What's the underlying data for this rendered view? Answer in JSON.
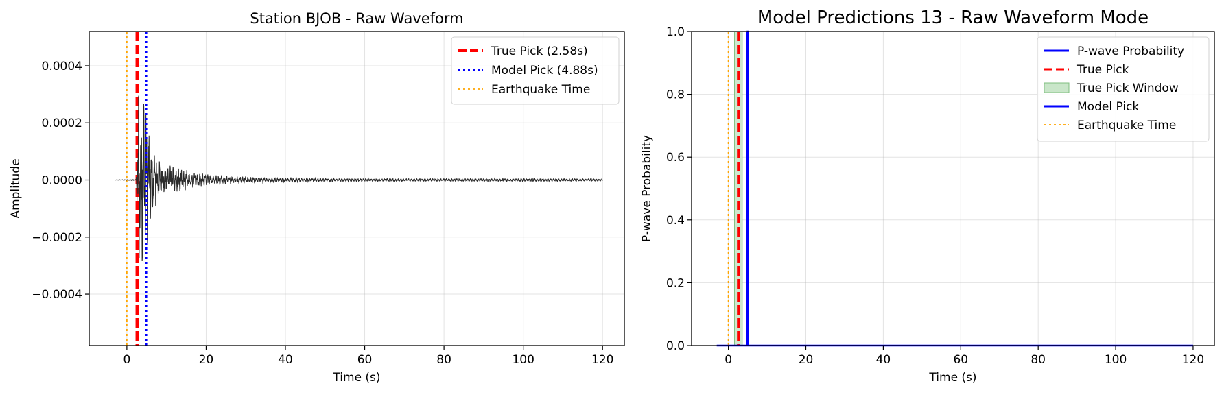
{
  "colors": {
    "waveform": "#2b2b2b",
    "true_pick": "#ff0000",
    "model_pick": "#0000ff",
    "earthquake_time": "#ffa500",
    "probability": "#0000ff",
    "pick_window_fill": "#c9e6c9",
    "pick_window_edge": "#7fbf7f"
  },
  "chart_data": [
    {
      "type": "line",
      "title": "Station BJOB - Raw Waveform",
      "xlabel": "Time (s)",
      "ylabel": "Amplitude",
      "xlim": [
        -9.5,
        125.5
      ],
      "ylim": [
        -0.00058,
        0.00052
      ],
      "xticks": [
        0,
        20,
        40,
        60,
        80,
        100,
        120
      ],
      "xtick_labels": [
        "0",
        "20",
        "40",
        "60",
        "80",
        "100",
        "120"
      ],
      "yticks": [
        0.0004,
        0.0002,
        0.0,
        -0.0002,
        -0.0004
      ],
      "ytick_labels": [
        "0.0004",
        "0.0002",
        "0.0000",
        "−0.0002",
        "−0.0004"
      ],
      "grid": true,
      "legend_position": "upper-right",
      "series": [
        {
          "name": "Waveform",
          "style": "solid",
          "envelope": [
            {
              "t": -3.0,
              "amp": 5e-07
            },
            {
              "t": 2.3,
              "amp": 2e-06
            },
            {
              "t": 2.6,
              "amp": 8e-05
            },
            {
              "t": 3.0,
              "amp": 0.0003
            },
            {
              "t": 4.0,
              "amp": 0.00025
            },
            {
              "t": 5.0,
              "amp": 0.00022
            },
            {
              "t": 6.0,
              "amp": 0.00012
            },
            {
              "t": 8.0,
              "amp": 6e-05
            },
            {
              "t": 12.0,
              "amp": 4e-05
            },
            {
              "t": 20.0,
              "amp": 1.8e-05
            },
            {
              "t": 30.0,
              "amp": 1e-05
            },
            {
              "t": 50.0,
              "amp": 5e-06
            },
            {
              "t": 80.0,
              "amp": 4e-06
            },
            {
              "t": 100.0,
              "amp": 5e-06
            },
            {
              "t": 120.0,
              "amp": 3e-06
            }
          ]
        },
        {
          "name": "True Pick (2.58s)",
          "style": "dashed",
          "x": 2.58
        },
        {
          "name": "Model Pick (4.88s)",
          "style": "dotted",
          "x": 4.88
        },
        {
          "name": "Earthquake Time",
          "style": "dotted",
          "x": 0.0
        }
      ],
      "legend": [
        {
          "label": "True Pick (2.58s)",
          "style": "dashed",
          "color_key": "true_pick"
        },
        {
          "label": "Model Pick (4.88s)",
          "style": "dotted",
          "color_key": "model_pick"
        },
        {
          "label": "Earthquake Time",
          "style": "dotted",
          "color_key": "earthquake_time"
        }
      ]
    },
    {
      "type": "line",
      "title": "Model Predictions 13 - Raw Waveform Mode",
      "xlabel": "Time (s)",
      "ylabel": "P-wave Probability",
      "xlim": [
        -9.5,
        125.5
      ],
      "ylim": [
        0.0,
        1.0
      ],
      "xticks": [
        0,
        20,
        40,
        60,
        80,
        100,
        120
      ],
      "xtick_labels": [
        "0",
        "20",
        "40",
        "60",
        "80",
        "100",
        "120"
      ],
      "yticks": [
        0.0,
        0.2,
        0.4,
        0.6,
        0.8,
        1.0
      ],
      "ytick_labels": [
        "0.0",
        "0.2",
        "0.4",
        "0.6",
        "0.8",
        "1.0"
      ],
      "grid": true,
      "legend_position": "upper-right",
      "series": [
        {
          "name": "P-wave Probability",
          "style": "solid",
          "x": [
            -3.0,
            4.85,
            4.95,
            5.05,
            5.15,
            120.0
          ],
          "y": [
            0.0,
            0.0,
            1.0,
            1.0,
            0.0,
            0.0
          ]
        },
        {
          "name": "True Pick",
          "style": "dashed",
          "x": 2.58
        },
        {
          "name": "True Pick Window",
          "style": "fill",
          "x_range": [
            1.58,
            3.58
          ]
        },
        {
          "name": "Model Pick",
          "style": "solid",
          "x": 4.88
        },
        {
          "name": "Earthquake Time",
          "style": "dotted",
          "x": 0.0
        }
      ],
      "legend": [
        {
          "label": "P-wave Probability",
          "style": "solid",
          "color_key": "probability"
        },
        {
          "label": "True Pick",
          "style": "dashed",
          "color_key": "true_pick"
        },
        {
          "label": "True Pick Window",
          "style": "patch",
          "color_key": "pick_window_fill"
        },
        {
          "label": "Model Pick",
          "style": "solid",
          "color_key": "model_pick"
        },
        {
          "label": "Earthquake Time",
          "style": "dotted",
          "color_key": "earthquake_time"
        }
      ]
    }
  ]
}
